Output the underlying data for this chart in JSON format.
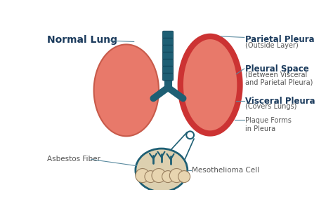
{
  "bg_color": "#ffffff",
  "lung_color": "#E8796A",
  "lung_dark": "#C85A4A",
  "lung_shadow": "#D4685A",
  "pleura_outer_color": "#CC3333",
  "spine_color": "#1E5F74",
  "plaque_color": "#EAD9C0",
  "plaque_edge": "#C8B090",
  "circle_bg": "#DDD0B0",
  "cell_color": "#E8D5B0",
  "cell_edge": "#9A8060",
  "cell_line_color": "#1E5F74",
  "label_color": "#1A3A5C",
  "sub_color": "#555555",
  "line_color": "#5A8A9F",
  "title_normal_lung": "Normal Lung",
  "label_parietal": "Parietal Pleura",
  "label_parietal_sub": "(Outside Layer)",
  "label_pleural": "Pleural Space",
  "label_pleural_sub": "(Between Visceral\nand Parietal Pleura)",
  "label_visceral": "Visceral Pleura",
  "label_visceral_sub": "(Covers Lungs)",
  "label_plaque": "Plaque Forms\nin Pleura",
  "label_asbestos": "Asbestos Fiber",
  "label_meso": "Mesothelioma Cell",
  "figsize": [
    4.74,
    3.04
  ],
  "dpi": 100
}
